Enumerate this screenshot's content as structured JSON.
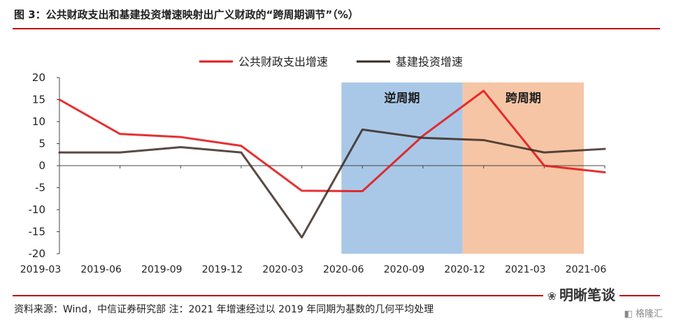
{
  "header": {
    "title": "图 3：公共财政支出和基建投资增速映射出广义财政的“跨周期调节”（%）"
  },
  "footer": {
    "source": "资料来源：Wind，中信证券研究部   注：2021 年增速经过以 2019 年同期为基数的几何平均处理",
    "watermark": "明晰笔谈",
    "logo": "格隆汇"
  },
  "colors": {
    "red": "#e31a1c",
    "dark": "#3a2a22",
    "blue_band": "#a9c8e8",
    "orange_band": "#f6c5a5"
  },
  "chart_data": {
    "type": "line",
    "title": "",
    "xlabel": "",
    "ylabel": "",
    "categories": [
      "2019-03",
      "2019-06",
      "2019-09",
      "2019-12",
      "2020-03",
      "2020-06",
      "2020-09",
      "2020-12",
      "2021-03",
      "2021-06"
    ],
    "ylim": [
      -20,
      20
    ],
    "yticks": [
      "20",
      "15",
      "10",
      "5",
      "0",
      "-5",
      "-10",
      "-15",
      "-20"
    ],
    "grid": false,
    "legend": "top-center",
    "series": [
      {
        "name": "公共财政支出增速",
        "color": "#e31a1c",
        "values": [
          15.0,
          7.2,
          6.5,
          4.5,
          -5.7,
          -5.8,
          6.8,
          17.0,
          0.0,
          -1.5
        ]
      },
      {
        "name": "基建投资增速",
        "color": "#3a2a22",
        "values": [
          3.0,
          3.0,
          4.2,
          3.0,
          -16.3,
          8.2,
          6.3,
          5.8,
          3.0,
          3.8
        ]
      }
    ],
    "annotations": [
      {
        "label": "逆周期",
        "color": "#a9c8e8"
      },
      {
        "label": "跨周期",
        "color": "#f6c5a5"
      }
    ]
  }
}
